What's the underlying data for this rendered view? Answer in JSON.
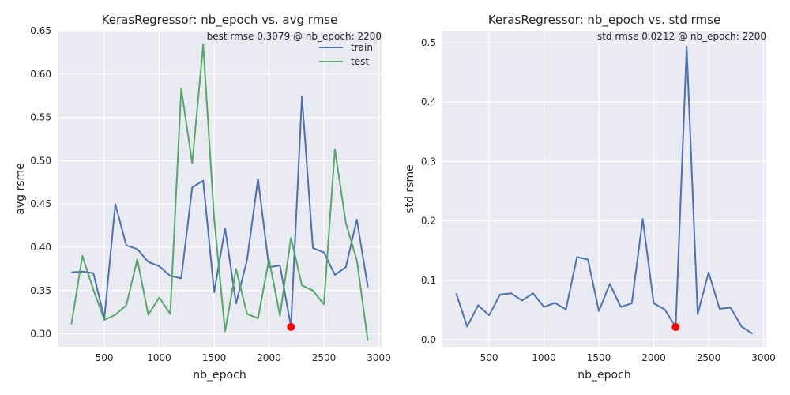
{
  "chart_data": [
    {
      "type": "line",
      "title": "KerasRegressor: nb_epoch vs. avg rmse",
      "xlabel": "nb_epoch",
      "ylabel": "avg rsme",
      "xlim": [
        75,
        3025
      ],
      "ylim": [
        0.285,
        0.65
      ],
      "xticks": [
        500,
        1000,
        1500,
        2000,
        2500,
        3000
      ],
      "xtick_labels": [
        "500",
        "1000",
        "1500",
        "2000",
        "2500",
        "3000"
      ],
      "yticks": [
        0.3,
        0.35,
        0.4,
        0.45,
        0.5,
        0.55,
        0.6,
        0.65
      ],
      "ytick_labels": [
        "0.30",
        "0.35",
        "0.40",
        "0.45",
        "0.50",
        "0.55",
        "0.60",
        "0.65"
      ],
      "grid": true,
      "legend": "top-right",
      "x": [
        200,
        300,
        400,
        500,
        600,
        700,
        800,
        900,
        1000,
        1100,
        1200,
        1300,
        1400,
        1500,
        1600,
        1700,
        1800,
        1900,
        2000,
        2100,
        2200,
        2300,
        2400,
        2500,
        2600,
        2700,
        2800,
        2900
      ],
      "series": [
        {
          "name": "train",
          "color": "#4c72b0",
          "values": [
            0.371,
            0.372,
            0.37,
            0.318,
            0.45,
            0.402,
            0.398,
            0.383,
            0.378,
            0.367,
            0.364,
            0.469,
            0.477,
            0.348,
            0.422,
            0.335,
            0.385,
            0.479,
            0.377,
            0.379,
            0.308,
            0.574,
            0.399,
            0.394,
            0.368,
            0.377,
            0.432,
            0.354
          ]
        },
        {
          "name": "test",
          "color": "#55a868",
          "values": [
            0.311,
            0.39,
            0.351,
            0.316,
            0.322,
            0.333,
            0.386,
            0.322,
            0.342,
            0.323,
            0.583,
            0.497,
            0.634,
            0.433,
            0.303,
            0.375,
            0.323,
            0.318,
            0.386,
            0.321,
            0.411,
            0.356,
            0.35,
            0.334,
            0.513,
            0.428,
            0.385,
            0.292
          ]
        }
      ],
      "highlight": {
        "x": 2200,
        "y": 0.3079,
        "color": "#ff0000"
      },
      "annotation": "best rmse 0.3079 @ nb_epoch: 2200"
    },
    {
      "type": "line",
      "title": "KerasRegressor: nb_epoch vs. std rmse",
      "xlabel": "nb_epoch",
      "ylabel": "std rsme",
      "xlim": [
        75,
        3025
      ],
      "ylim": [
        -0.012,
        0.52
      ],
      "xticks": [
        500,
        1000,
        1500,
        2000,
        2500,
        3000
      ],
      "xtick_labels": [
        "500",
        "1000",
        "1500",
        "2000",
        "2500",
        "3000"
      ],
      "yticks": [
        0.0,
        0.1,
        0.2,
        0.3,
        0.4,
        0.5
      ],
      "ytick_labels": [
        "0.0",
        "0.1",
        "0.2",
        "0.3",
        "0.4",
        "0.5"
      ],
      "grid": true,
      "x": [
        200,
        300,
        400,
        500,
        600,
        700,
        800,
        900,
        1000,
        1100,
        1200,
        1300,
        1400,
        1500,
        1600,
        1700,
        1800,
        1900,
        2000,
        2100,
        2200,
        2300,
        2400,
        2500,
        2600,
        2700,
        2800,
        2900
      ],
      "series": [
        {
          "color": "#4c72b0",
          "values": [
            0.078,
            0.022,
            0.058,
            0.041,
            0.076,
            0.078,
            0.066,
            0.078,
            0.055,
            0.062,
            0.051,
            0.139,
            0.135,
            0.048,
            0.094,
            0.055,
            0.061,
            0.203,
            0.061,
            0.051,
            0.0212,
            0.494,
            0.043,
            0.113,
            0.052,
            0.054,
            0.022,
            0.01
          ]
        }
      ],
      "highlight": {
        "x": 2200,
        "y": 0.0212,
        "color": "#ff0000"
      },
      "annotation": "std rmse 0.0212 @ nb_epoch: 2200"
    }
  ]
}
